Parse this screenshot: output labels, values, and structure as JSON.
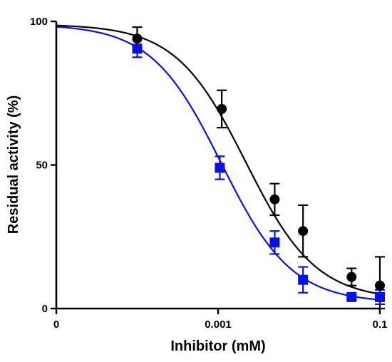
{
  "chart_data": {
    "type": "scatter",
    "xlabel": "Inhibitor (mM)",
    "ylabel": "Residual activity (%)",
    "x_scale": "log",
    "xlim": [
      1e-05,
      0.1
    ],
    "ylim": [
      0,
      100
    ],
    "x_ticks": [
      {
        "value": 1e-05,
        "label": "0"
      },
      {
        "value": 0.001,
        "label": "0.001"
      },
      {
        "value": 0.1,
        "label": "0.1"
      }
    ],
    "y_ticks": [
      {
        "value": 0,
        "label": "0"
      },
      {
        "value": 50,
        "label": "50"
      },
      {
        "value": 100,
        "label": "100"
      }
    ],
    "grid": false,
    "series": [
      {
        "marker": "circle",
        "color": "#000000",
        "points": [
          {
            "x": 0.0001,
            "y": 94,
            "err": 4
          },
          {
            "x": 0.00111,
            "y": 69.5,
            "err": 6.5
          },
          {
            "x": 0.00501,
            "y": 38,
            "err": 5.5
          },
          {
            "x": 0.01122,
            "y": 27,
            "err": 9
          },
          {
            "x": 0.04467,
            "y": 11,
            "err": 3
          },
          {
            "x": 0.1,
            "y": 8,
            "err": 10
          }
        ],
        "fit": {
          "top": 99,
          "bottom": 3,
          "ic50": 0.0022,
          "hill": 1.0
        }
      },
      {
        "marker": "square",
        "color": "#0a10e0",
        "points": [
          {
            "x": 0.0001,
            "y": 90.5,
            "err": 3
          },
          {
            "x": 0.00105,
            "y": 49,
            "err": 4
          },
          {
            "x": 0.00501,
            "y": 23,
            "err": 4
          },
          {
            "x": 0.01122,
            "y": 10,
            "err": 4.5
          },
          {
            "x": 0.04467,
            "y": 4,
            "err": 0.8
          },
          {
            "x": 0.1,
            "y": 4,
            "err": 2.5
          }
        ],
        "fit": {
          "top": 99,
          "bottom": 2,
          "ic50": 0.0011,
          "hill": 1.0
        }
      }
    ]
  }
}
